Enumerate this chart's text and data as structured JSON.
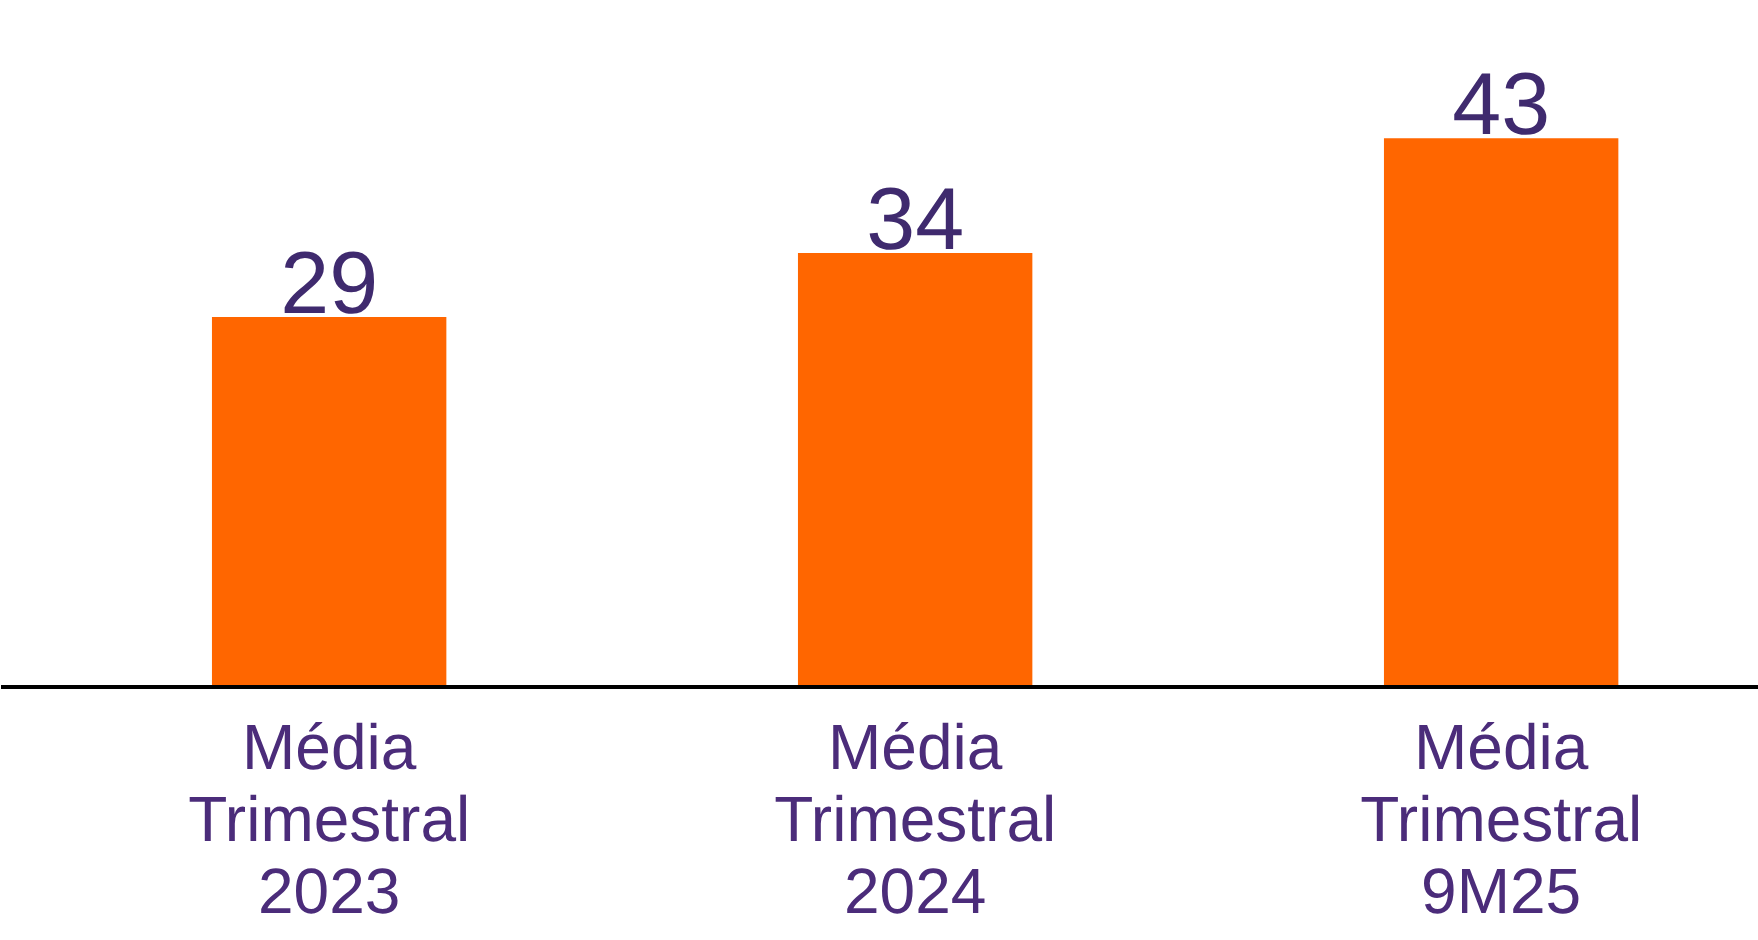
{
  "chart_data": {
    "type": "bar",
    "categories": [
      "Média\nTrimestral\n2023",
      "Média\nTrimestral\n2024",
      "Média\nTrimestral\n9M25"
    ],
    "values": [
      29,
      34,
      43
    ],
    "color": "#ff6600",
    "data_labels": true,
    "grid": false
  }
}
